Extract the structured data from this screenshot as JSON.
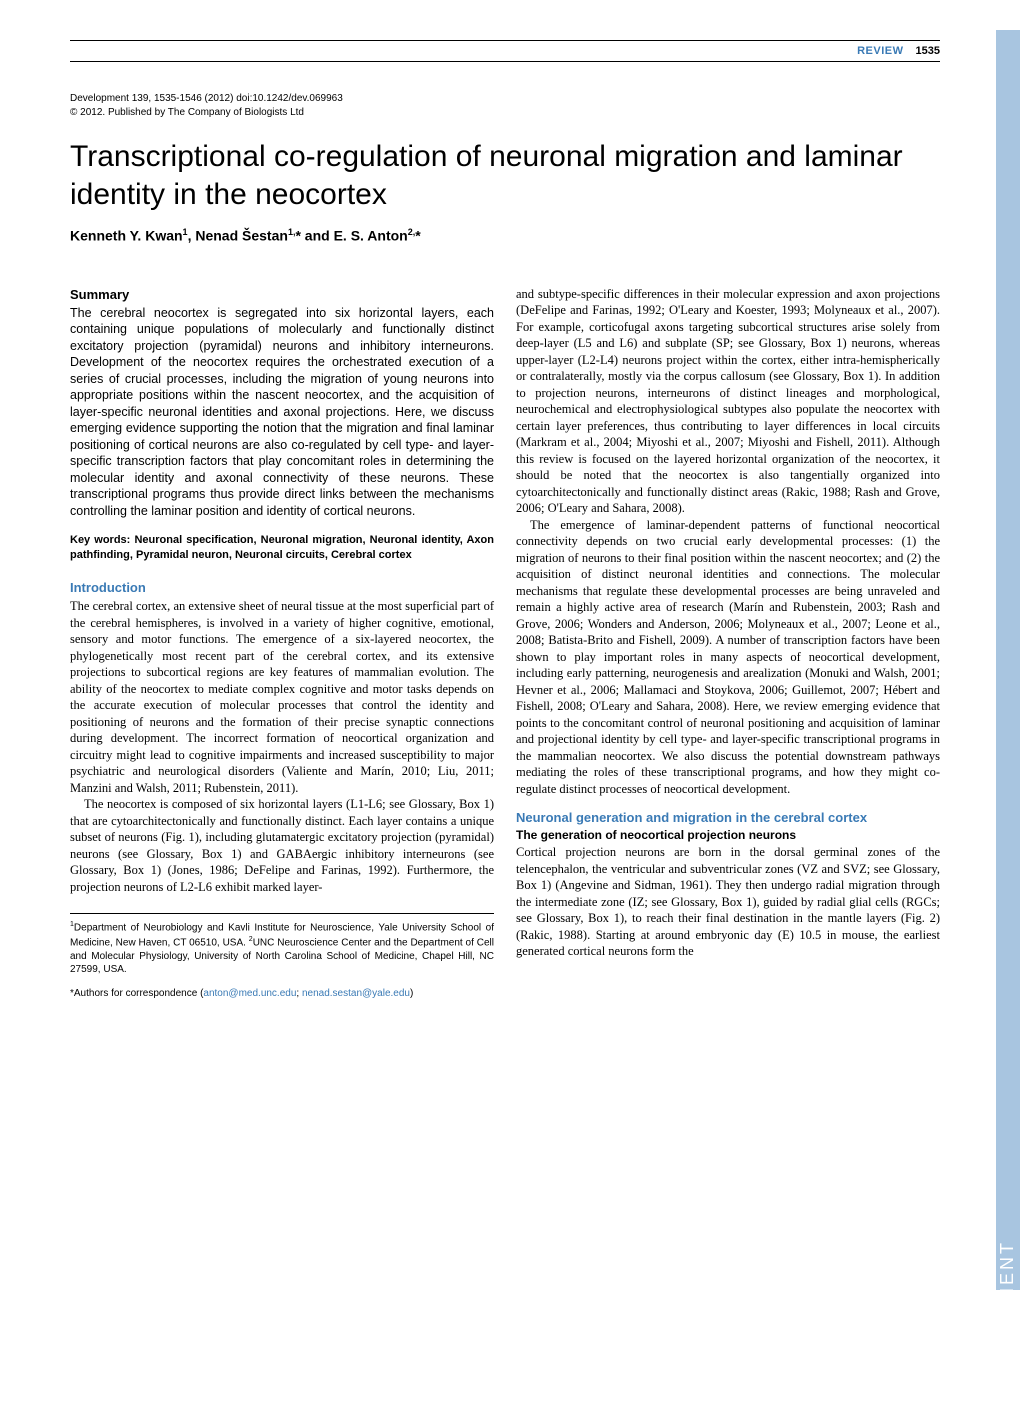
{
  "colors": {
    "accent_blue": "#3a7ab5",
    "side_tab_bg": "#a8c5e0",
    "side_tab_text": "#ffffff",
    "body_text": "#000000",
    "rule": "#000000"
  },
  "typography": {
    "title_fontsize": 30,
    "title_weight": 300,
    "body_fontsize": 12.5,
    "heading_fontsize": 13,
    "authors_fontsize": 14,
    "citation_fontsize": 10,
    "affiliation_fontsize": 10
  },
  "header": {
    "review_label": "REVIEW",
    "page_number": "1535"
  },
  "side_tab": {
    "text": "DEVELOPMENT"
  },
  "citation": {
    "line1": "Development 139, 1535-1546 (2012) doi:10.1242/dev.069963",
    "line2": "© 2012. Published by The Company of Biologists Ltd"
  },
  "title": "Transcriptional co-regulation of neuronal migration and laminar identity in the neocortex",
  "authors_html": "Kenneth Y. Kwan<sup>1</sup>, Nenad Šestan<sup>1,</sup>* and E. S. Anton<sup>2,</sup>*",
  "summary": {
    "heading": "Summary",
    "text": "The cerebral neocortex is segregated into six horizontal layers, each containing unique populations of molecularly and functionally distinct excitatory projection (pyramidal) neurons and inhibitory interneurons. Development of the neocortex requires the orchestrated execution of a series of crucial processes, including the migration of young neurons into appropriate positions within the nascent neocortex, and the acquisition of layer-specific neuronal identities and axonal projections. Here, we discuss emerging evidence supporting the notion that the migration and final laminar positioning of cortical neurons are also co-regulated by cell type- and layer-specific transcription factors that play concomitant roles in determining the molecular identity and axonal connectivity of these neurons. These transcriptional programs thus provide direct links between the mechanisms controlling the laminar position and identity of cortical neurons."
  },
  "keywords": {
    "label": "Key words:",
    "text": "Neuronal specification, Neuronal migration, Neuronal identity, Axon pathfinding, Pyramidal neuron, Neuronal circuits, Cerebral cortex"
  },
  "introduction": {
    "heading": "Introduction",
    "p1": "The cerebral cortex, an extensive sheet of neural tissue at the most superficial part of the cerebral hemispheres, is involved in a variety of higher cognitive, emotional, sensory and motor functions. The emergence of a six-layered neocortex, the phylogenetically most recent part of the cerebral cortex, and its extensive projections to subcortical regions are key features of mammalian evolution. The ability of the neocortex to mediate complex cognitive and motor tasks depends on the accurate execution of molecular processes that control the identity and positioning of neurons and the formation of their precise synaptic connections during development. The incorrect formation of neocortical organization and circuitry might lead to cognitive impairments and increased susceptibility to major psychiatric and neurological disorders (Valiente and Marín, 2010; Liu, 2011; Manzini and Walsh, 2011; Rubenstein, 2011).",
    "p2": "The neocortex is composed of six horizontal layers (L1-L6; see Glossary, Box 1) that are cytoarchitectonically and functionally distinct. Each layer contains a unique subset of neurons (Fig. 1), including glutamatergic excitatory projection (pyramidal) neurons (see Glossary, Box 1) and GABAergic inhibitory interneurons (see Glossary, Box 1) (Jones, 1986; DeFelipe and Farinas, 1992). Furthermore, the projection neurons of L2-L6 exhibit marked layer-"
  },
  "col2": {
    "p1": "and subtype-specific differences in their molecular expression and axon projections (DeFelipe and Farinas, 1992; O'Leary and Koester, 1993; Molyneaux et al., 2007). For example, corticofugal axons targeting subcortical structures arise solely from deep-layer (L5 and L6) and subplate (SP; see Glossary, Box 1) neurons, whereas upper-layer (L2-L4) neurons project within the cortex, either intra-hemispherically or contralaterally, mostly via the corpus callosum (see Glossary, Box 1). In addition to projection neurons, interneurons of distinct lineages and morphological, neurochemical and electrophysiological subtypes also populate the neocortex with certain layer preferences, thus contributing to layer differences in local circuits (Markram et al., 2004; Miyoshi et al., 2007; Miyoshi and Fishell, 2011). Although this review is focused on the layered horizontal organization of the neocortex, it should be noted that the neocortex is also tangentially organized into cytoarchitectonically and functionally distinct areas (Rakic, 1988; Rash and Grove, 2006; O'Leary and Sahara, 2008).",
    "p2": "The emergence of laminar-dependent patterns of functional neocortical connectivity depends on two crucial early developmental processes: (1) the migration of neurons to their final position within the nascent neocortex; and (2) the acquisition of distinct neuronal identities and connections. The molecular mechanisms that regulate these developmental processes are being unraveled and remain a highly active area of research (Marín and Rubenstein, 2003; Rash and Grove, 2006; Wonders and Anderson, 2006; Molyneaux et al., 2007; Leone et al., 2008; Batista-Brito and Fishell, 2009). A number of transcription factors have been shown to play important roles in many aspects of neocortical development, including early patterning, neurogenesis and arealization (Monuki and Walsh, 2001; Hevner et al., 2006; Mallamaci and Stoykova, 2006; Guillemot, 2007; Hébert and Fishell, 2008; O'Leary and Sahara, 2008). Here, we review emerging evidence that points to the concomitant control of neuronal positioning and acquisition of laminar and projectional identity by cell type- and layer-specific transcriptional programs in the mammalian neocortex. We also discuss the potential downstream pathways mediating the roles of these transcriptional programs, and how they might co-regulate distinct processes of neocortical development."
  },
  "section2": {
    "heading": "Neuronal generation and migration in the cerebral cortex",
    "sub": "The generation of neocortical projection neurons",
    "p1": "Cortical projection neurons are born in the dorsal germinal zones of the telencephalon, the ventricular and subventricular zones (VZ and SVZ; see Glossary, Box 1) (Angevine and Sidman, 1961). They then undergo radial migration through the intermediate zone (IZ; see Glossary, Box 1), guided by radial glial cells (RGCs; see Glossary, Box 1), to reach their final destination in the mantle layers (Fig. 2) (Rakic, 1988). Starting at around embryonic day (E) 10.5 in mouse, the earliest generated cortical neurons form the"
  },
  "affiliations": {
    "text_html": "<sup>1</sup>Department of Neurobiology and Kavli Institute for Neuroscience, Yale University School of Medicine, New Haven, CT 06510, USA. <sup>2</sup>UNC Neuroscience Center and the Department of Cell and Molecular Physiology, University of North Carolina School of Medicine, Chapel Hill, NC 27599, USA."
  },
  "correspondence": {
    "prefix": "*Authors for correspondence (",
    "email1": "anton@med.unc.edu",
    "sep": "; ",
    "email2": "nenad.sestan@yale.edu",
    "suffix": ")"
  }
}
